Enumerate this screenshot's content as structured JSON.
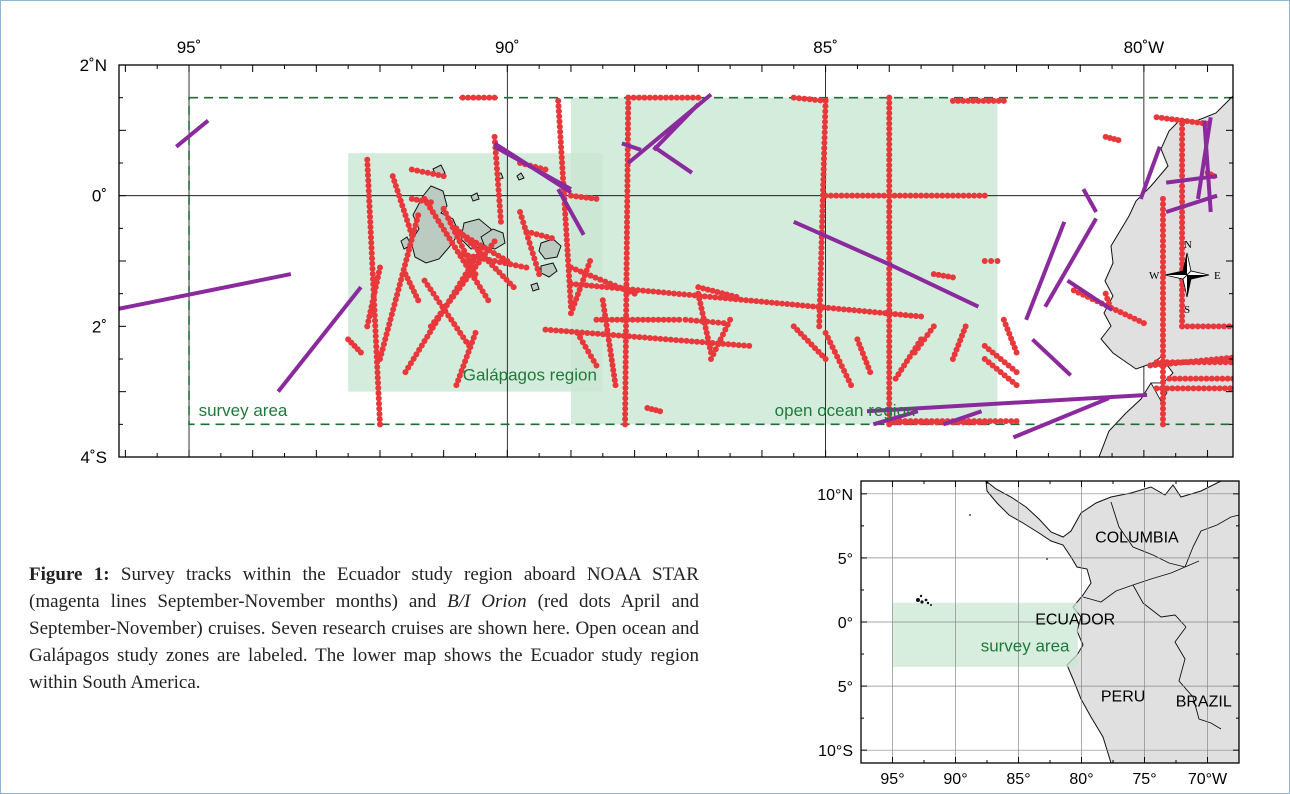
{
  "main_map": {
    "lat_labels": [
      {
        "lat": 2,
        "label": "2˚N"
      },
      {
        "lat": 0,
        "label": "0˚"
      },
      {
        "lat": -2,
        "label": "2˚"
      },
      {
        "lat": -4,
        "label": "4˚S"
      }
    ],
    "lon_labels": [
      {
        "lon": -95,
        "label": "95˚"
      },
      {
        "lon": -90,
        "label": "90˚"
      },
      {
        "lon": -85,
        "label": "85˚"
      },
      {
        "lon": -80,
        "label": "80˚W"
      }
    ],
    "lon_range": [
      -96.1,
      -78.6
    ],
    "lat_range": [
      -4,
      2
    ],
    "regions": {
      "survey_area": {
        "label": "survey area",
        "lon": [
          -95,
          -78.2
        ],
        "lat": [
          -3.5,
          1.5
        ]
      },
      "galapagos": {
        "label": "Galápagos region",
        "lon": [
          -92.5,
          -88.5
        ],
        "lat": [
          -3,
          0.65
        ]
      },
      "open_ocean": {
        "label": "open ocean region",
        "lon": [
          -89,
          -82.3
        ],
        "lat": [
          -3.5,
          1.5
        ]
      }
    },
    "compass": {
      "n": "N",
      "s": "S",
      "e": "E",
      "w": "W"
    },
    "colors": {
      "survey_border": "#1f6b3a",
      "region_fill": "#c9e7d3",
      "region_text": "#1f7a3a",
      "noaa_star_tracks": "#8a2a9c",
      "orion_tracks": "#e8383b",
      "land": "#e0e0e0",
      "islands": "#bccbc1"
    }
  },
  "inset_map": {
    "lat_labels": [
      {
        "lat": 10,
        "label": "10°N"
      },
      {
        "lat": 5,
        "label": "5°"
      },
      {
        "lat": 0,
        "label": "0°"
      },
      {
        "lat": -5,
        "label": "5°"
      },
      {
        "lat": -10,
        "label": "10°S"
      }
    ],
    "lon_labels": [
      {
        "lon": -95,
        "label": "95°"
      },
      {
        "lon": -90,
        "label": "90°"
      },
      {
        "lon": -85,
        "label": "85°"
      },
      {
        "lon": -80,
        "label": "80°"
      },
      {
        "lon": -75,
        "label": "75°"
      },
      {
        "lon": -70,
        "label": "70°W"
      }
    ],
    "countries": [
      {
        "label": "COLUMBIA",
        "lon": -75.6,
        "lat": 6.2
      },
      {
        "label": "ECUADOR",
        "lon": -80.5,
        "lat": -0.2
      },
      {
        "label": "PERU",
        "lon": -76.7,
        "lat": -6.2
      },
      {
        "label": "BRAZIL",
        "lon": -70.3,
        "lat": -6.6
      }
    ],
    "survey_label": "survey area"
  },
  "caption": {
    "label": "Figure 1:",
    "text_part1": " Survey tracks within the Ecuador study region aboard NOAA STAR (magenta lines September-November months) and ",
    "vessel": "B/I Orion",
    "text_part2": " (red dots April and September-November) cruises. Seven research cruises are shown here. Open ocean and Galápagos study zones are labeled. The lower map shows the Ecuador study region within South America."
  }
}
